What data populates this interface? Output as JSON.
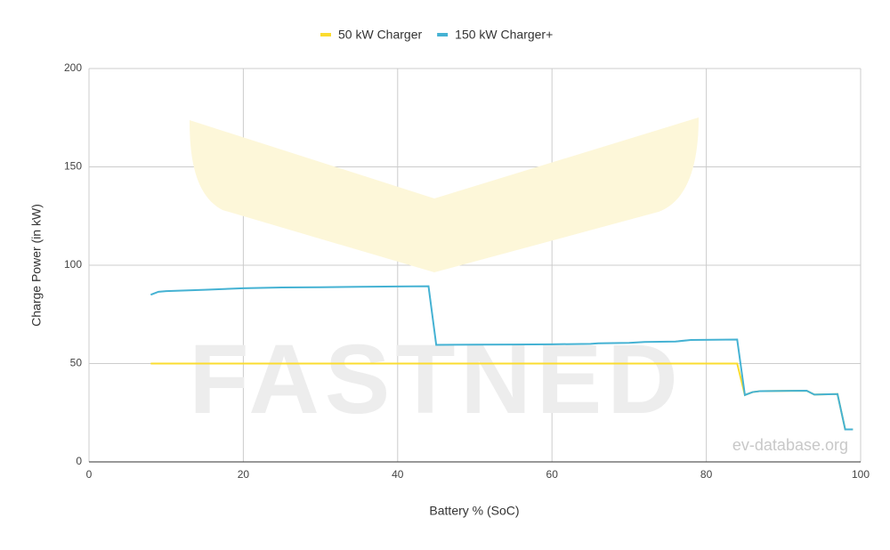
{
  "chart_data": {
    "type": "line",
    "x_label": "Battery % (SoC)",
    "y_label": "Charge Power (in kW)",
    "xlim": [
      0,
      100
    ],
    "xticks": [
      0,
      20,
      40,
      60,
      80,
      100
    ],
    "ylim": [
      0,
      200
    ],
    "yticks": [
      0,
      50,
      100,
      150,
      200
    ],
    "grid": true,
    "legend": "top",
    "watermark": "FASTNED",
    "source": "ev-database.org",
    "series": [
      {
        "name": "50 kW Charger",
        "color": "#fbdc2f",
        "x": [
          8,
          84,
          85,
          86,
          87,
          93,
          94,
          97,
          98,
          99
        ],
        "values": [
          50,
          50,
          34,
          35.5,
          36,
          36.2,
          34.2,
          34.5,
          16.5,
          16.5
        ]
      },
      {
        "name": "150 kW Charger+",
        "color": "#45b2d3",
        "x": [
          8,
          9,
          10,
          15,
          20,
          25,
          30,
          35,
          40,
          44,
          45,
          50,
          55,
          60,
          65,
          66,
          70,
          72,
          76,
          78,
          84,
          85,
          86,
          87,
          93,
          94,
          97,
          98,
          99
        ],
        "values": [
          85,
          86.5,
          86.8,
          87.5,
          88.3,
          88.7,
          88.8,
          89,
          89.2,
          89.3,
          59.5,
          59.6,
          59.7,
          59.8,
          60,
          60.3,
          60.5,
          61,
          61.2,
          62,
          62.2,
          34,
          35.5,
          36,
          36.2,
          34.2,
          34.5,
          16.5,
          16.5
        ]
      }
    ]
  }
}
